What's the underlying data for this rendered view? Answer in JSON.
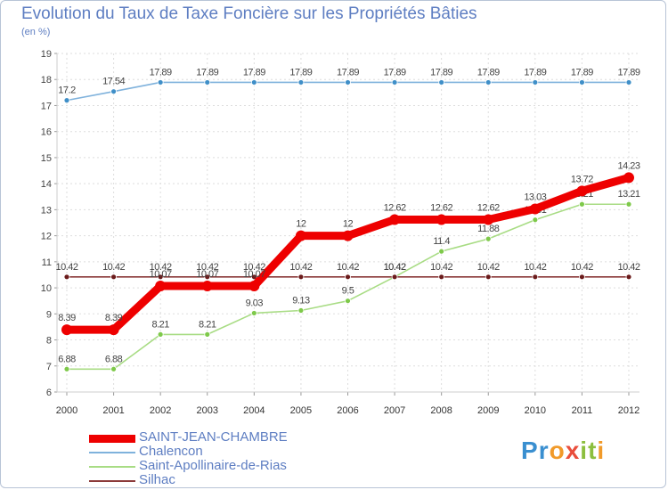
{
  "header": {
    "title": "Evolution du Taux de Taxe Foncière sur les Propriétés Bâties",
    "unit": "(en %)"
  },
  "logo": {
    "letters": [
      "P",
      "r",
      "o",
      "x",
      "i",
      "t",
      "i"
    ],
    "colors": [
      "#3a8fd0",
      "#3a8fd0",
      "#f19a2a",
      "#e94e3c",
      "#8cbf3f",
      "#8cbf3f",
      "#f19a2a"
    ]
  },
  "chart_data": {
    "type": "line",
    "title": "Evolution du Taux de Taxe Foncière sur les Propriétés Bâties",
    "ylabel": "(en %)",
    "xlabel": "",
    "ylim": [
      6,
      19
    ],
    "yticks": [
      "6",
      "7",
      "8",
      "9",
      "10",
      "11",
      "12",
      "13",
      "14",
      "15",
      "16",
      "17",
      "18",
      "19"
    ],
    "categories": [
      "2000",
      "2001",
      "2002",
      "2003",
      "2004",
      "2005",
      "2006",
      "2007",
      "2008",
      "2009",
      "2010",
      "2011",
      "2012"
    ],
    "grid": true,
    "legend": "bottom-left",
    "series": [
      {
        "name": "Saint-Apollinaire-de-Rias",
        "color": "#a8dc84",
        "marker": "#7ec94a",
        "style": "thin",
        "values": [
          6.88,
          6.88,
          8.21,
          8.21,
          9.03,
          9.13,
          9.5,
          10.42,
          11.4,
          11.88,
          12.61,
          13.21,
          13.21
        ],
        "labels": [
          "6.88",
          "6.88",
          "8.21",
          "8.21",
          "9.03",
          "9.13",
          "9.5",
          "10.42",
          "11.4",
          "11.88",
          "12.61",
          "13.21",
          "13.21"
        ]
      },
      {
        "name": "Chalencon",
        "color": "#7fb2dc",
        "marker": "#3f8fc8",
        "style": "thin",
        "values": [
          17.2,
          17.54,
          17.89,
          17.89,
          17.89,
          17.89,
          17.89,
          17.89,
          17.89,
          17.89,
          17.89,
          17.89,
          17.89
        ],
        "labels": [
          "17.2",
          "17.54",
          "17.89",
          "17.89",
          "17.89",
          "17.89",
          "17.89",
          "17.89",
          "17.89",
          "17.89",
          "17.89",
          "17.89",
          "17.89"
        ]
      },
      {
        "name": "Silhac",
        "color": "#8b3a3a",
        "marker": "#6b1b1b",
        "style": "thin",
        "values": [
          10.42,
          10.42,
          10.42,
          10.42,
          10.42,
          10.42,
          10.42,
          10.42,
          10.42,
          10.42,
          10.42,
          10.42,
          10.42
        ],
        "labels": [
          "10.42",
          "10.42",
          "10.42",
          "10.42",
          "10.42",
          "10.42",
          "10.42",
          "10.42",
          "10.42",
          "10.42",
          "10.42",
          "10.42",
          "10.42"
        ]
      },
      {
        "name": "SAINT-JEAN-CHAMBRE",
        "color": "#ee0000",
        "marker": "#ee0000",
        "style": "thick",
        "values": [
          8.39,
          8.39,
          10.07,
          10.07,
          10.07,
          12,
          12,
          12.62,
          12.62,
          12.62,
          13.03,
          13.72,
          14.23
        ],
        "labels": [
          "8.39",
          "8.39",
          "10.07",
          "10.07",
          "10.07",
          "12",
          "12",
          "12.62",
          "12.62",
          "12.62",
          "13.03",
          "13.72",
          "14.23"
        ]
      }
    ],
    "legend_order": [
      "SAINT-JEAN-CHAMBRE",
      "Chalencon",
      "Saint-Apollinaire-de-Rias",
      "Silhac"
    ]
  }
}
